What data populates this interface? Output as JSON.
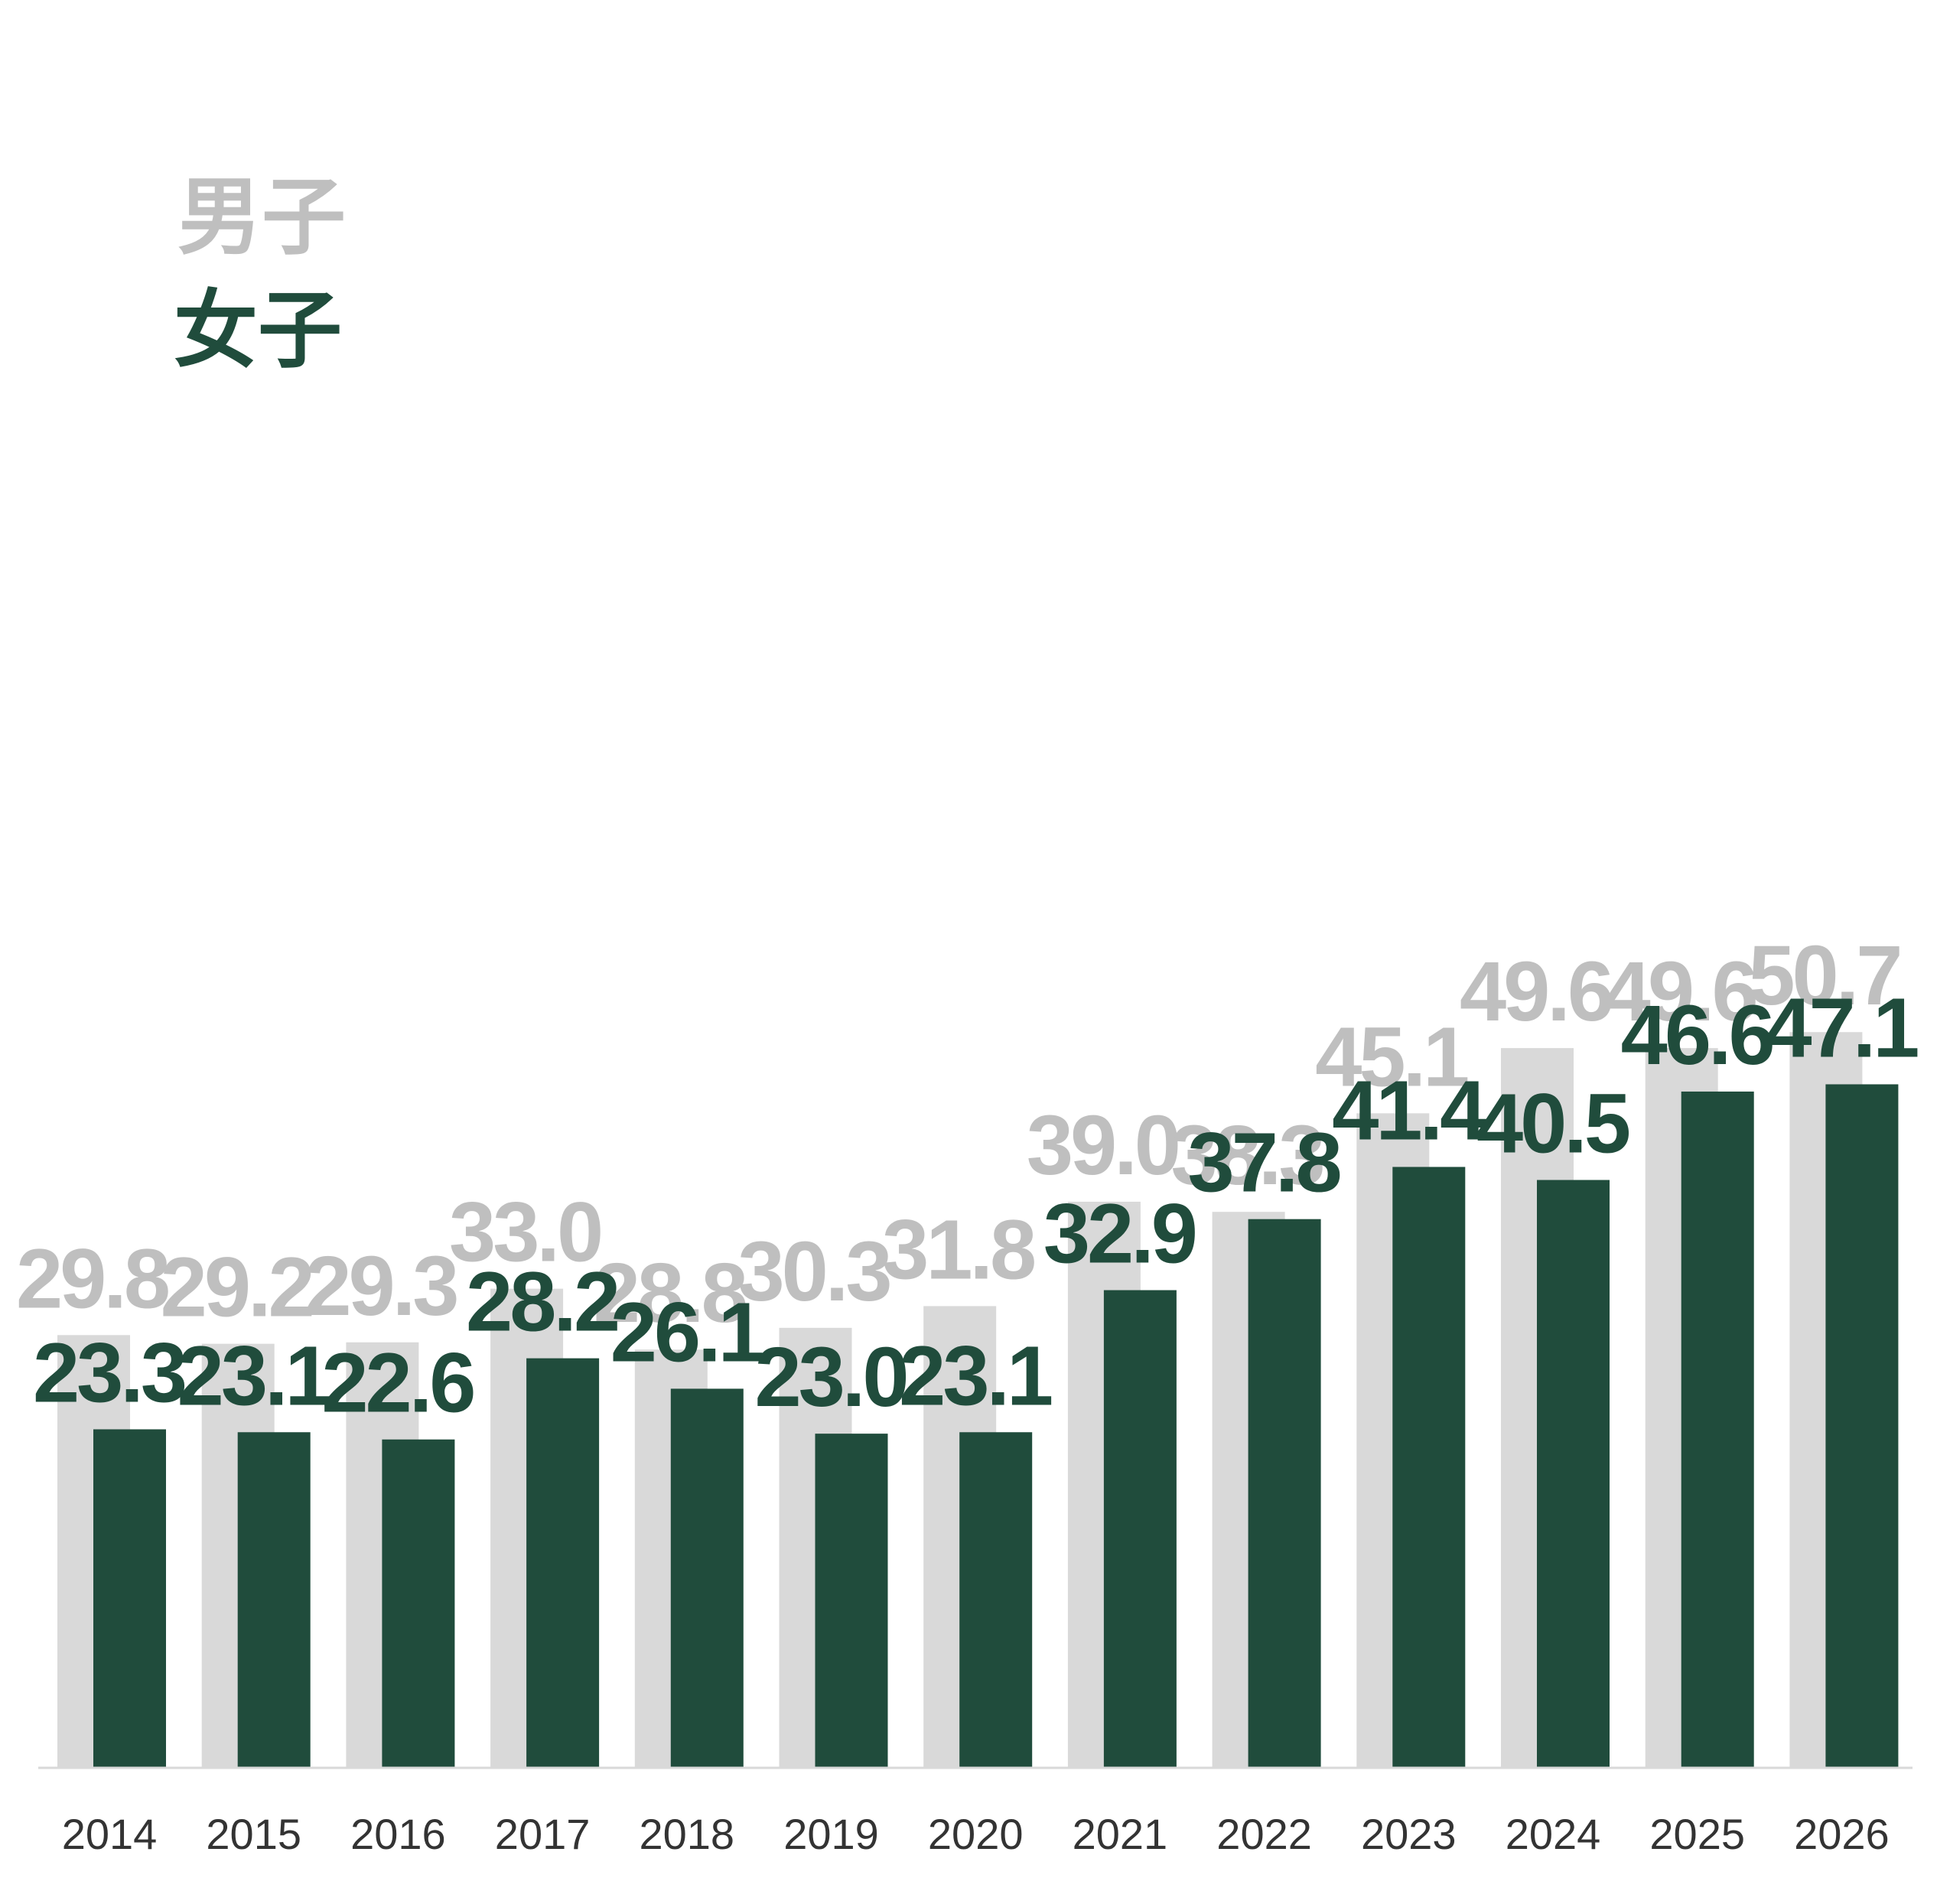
{
  "chart_data": {
    "type": "bar",
    "categories": [
      "2014",
      "2015",
      "2016",
      "2017",
      "2018",
      "2019",
      "2020",
      "2021",
      "2022",
      "2023",
      "2024",
      "2025",
      "2026"
    ],
    "series": [
      {
        "name": "男子",
        "color": "#d9d9d9",
        "label_color": "#bfbfbf",
        "values": [
          29.8,
          29.2,
          29.3,
          33.0,
          28.8,
          30.3,
          31.8,
          39.0,
          38.3,
          45.1,
          49.6,
          49.6,
          50.7
        ]
      },
      {
        "name": "女子",
        "color": "#204c3c",
        "label_color": "#204c3c",
        "values": [
          23.3,
          23.1,
          22.6,
          28.2,
          26.1,
          23.0,
          23.1,
          32.9,
          37.8,
          41.4,
          40.5,
          46.6,
          47.1
        ]
      }
    ],
    "ylim": [
      0,
      60
    ],
    "legend_position": "top-left",
    "grid": false,
    "axis_line_color": "#d9d9d9",
    "tick_color": "#333333"
  }
}
